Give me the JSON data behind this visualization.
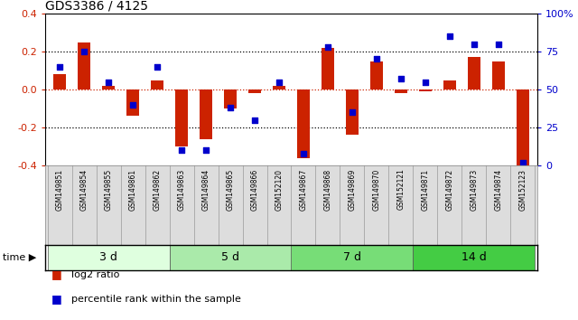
{
  "title": "GDS3386 / 4125",
  "samples": [
    "GSM149851",
    "GSM149854",
    "GSM149855",
    "GSM149861",
    "GSM149862",
    "GSM149863",
    "GSM149864",
    "GSM149865",
    "GSM149866",
    "GSM152120",
    "GSM149867",
    "GSM149868",
    "GSM149869",
    "GSM149870",
    "GSM152121",
    "GSM149871",
    "GSM149872",
    "GSM149873",
    "GSM149874",
    "GSM152123"
  ],
  "log2_ratio": [
    0.08,
    0.25,
    0.02,
    -0.14,
    0.05,
    -0.3,
    -0.26,
    -0.1,
    -0.02,
    0.02,
    -0.36,
    0.22,
    -0.24,
    0.15,
    -0.02,
    -0.01,
    0.05,
    0.17,
    0.15,
    -0.43
  ],
  "percentile": [
    65,
    75,
    55,
    40,
    65,
    10,
    10,
    38,
    30,
    55,
    8,
    78,
    35,
    70,
    57,
    55,
    85,
    80,
    80,
    2
  ],
  "groups": [
    {
      "label": "3 d",
      "start": 0,
      "end": 5,
      "color": "#dfffdf"
    },
    {
      "label": "5 d",
      "start": 5,
      "end": 10,
      "color": "#aaeaaa"
    },
    {
      "label": "7 d",
      "start": 10,
      "end": 15,
      "color": "#77dd77"
    },
    {
      "label": "14 d",
      "start": 15,
      "end": 20,
      "color": "#44cc44"
    }
  ],
  "bar_color": "#cc2200",
  "dot_color": "#0000cc",
  "ylim_left": [
    -0.4,
    0.4
  ],
  "ylim_right": [
    0,
    100
  ],
  "yticks_left": [
    -0.4,
    -0.2,
    0.0,
    0.2,
    0.4
  ],
  "yticks_right": [
    0,
    25,
    50,
    75,
    100
  ],
  "hlines_black": [
    -0.2,
    0.2
  ],
  "hline_red": 0.0,
  "legend_items": [
    "log2 ratio",
    "percentile rank within the sample"
  ],
  "legend_colors": [
    "#cc2200",
    "#0000cc"
  ],
  "background_color": "#ffffff",
  "sample_box_bg": "#dddddd"
}
